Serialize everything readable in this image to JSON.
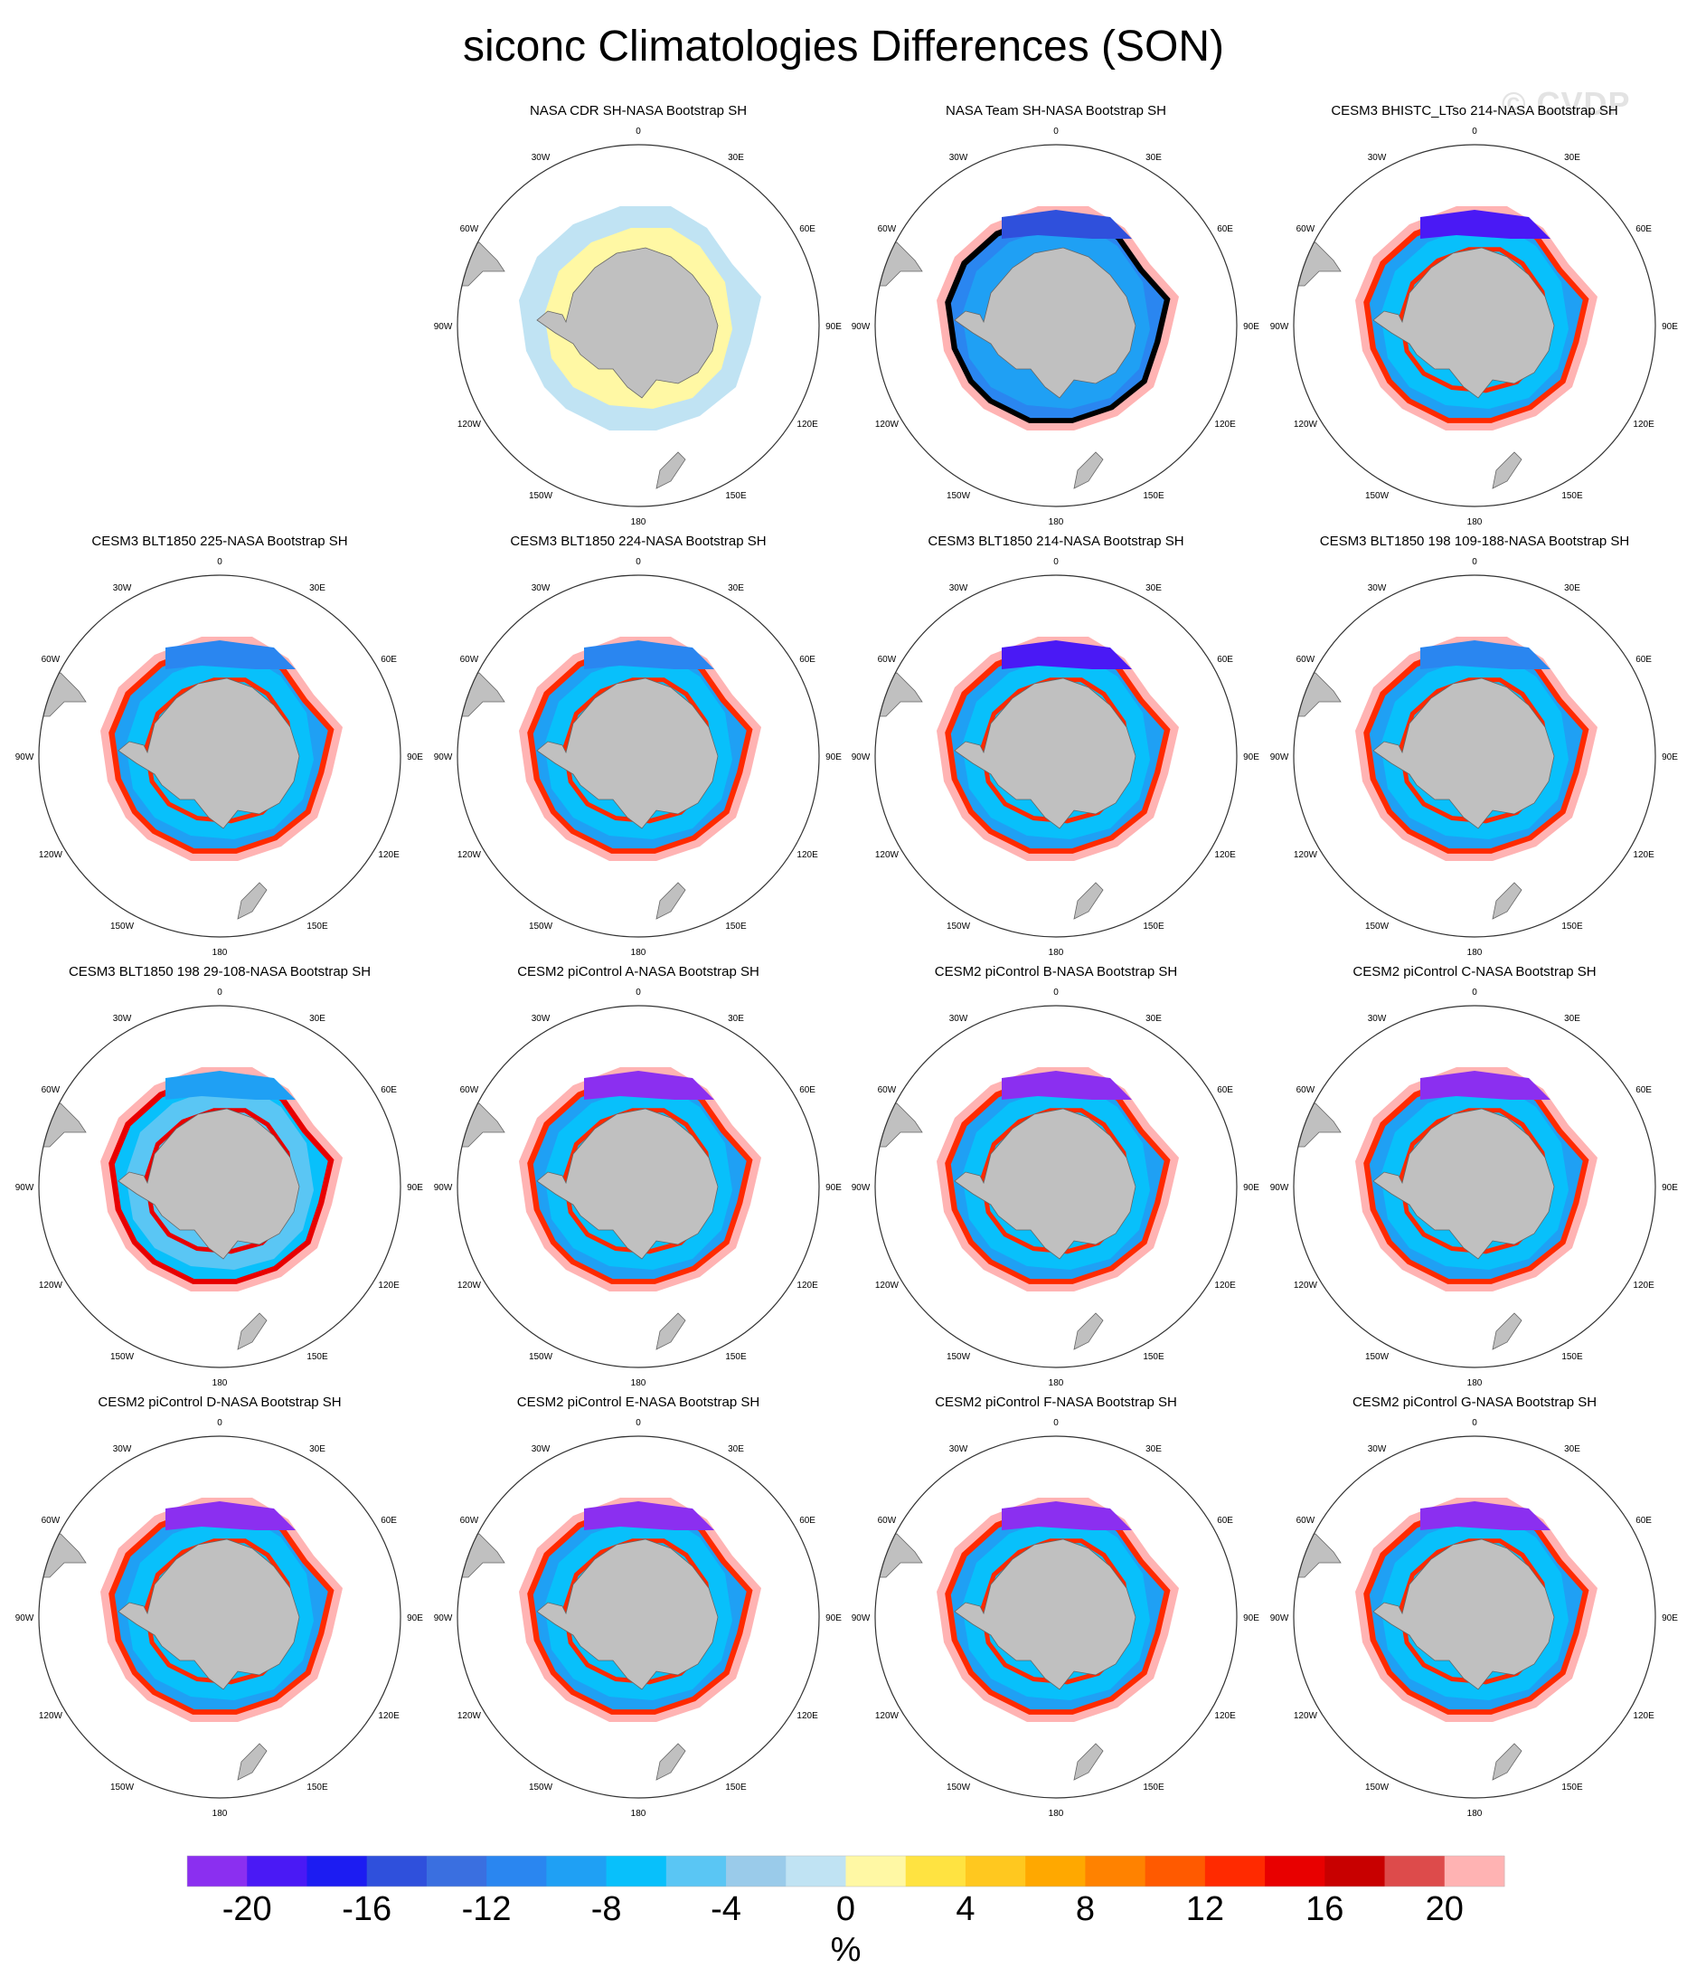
{
  "title": "siconc Climatologies Differences (SON)",
  "watermark": "© CVDP",
  "colorbar": {
    "unit": "%",
    "tick_labels": [
      "-20",
      "-16",
      "-12",
      "-8",
      "-4",
      "0",
      "4",
      "8",
      "12",
      "16",
      "20"
    ],
    "colors": [
      "#8b2ff0",
      "#4a19f5",
      "#1c1cf2",
      "#2f50dc",
      "#3a6fe0",
      "#2a86f0",
      "#1fa0f4",
      "#08c0fb",
      "#5ac6f4",
      "#9acbea",
      "#c0e3f3",
      "#fff8a4",
      "#ffe341",
      "#ffc81f",
      "#ffa800",
      "#ff8200",
      "#ff5a00",
      "#ff2a00",
      "#e80000",
      "#c80000",
      "#dd4b4b",
      "#ffb3b3"
    ]
  },
  "land_color": "#c0c0c0",
  "panel_titles": [
    "NASA CDR SH-NASA Bootstrap SH",
    "NASA Team SH-NASA Bootstrap SH",
    "CESM3 BHISTC_LTso 214-NASA Bootstrap SH",
    "CESM3 BLT1850 225-NASA Bootstrap SH",
    "CESM3 BLT1850 224-NASA Bootstrap SH",
    "CESM3 BLT1850 214-NASA Bootstrap SH",
    "CESM3 BLT1850 198 109-188-NASA Bootstrap SH",
    "CESM3 BLT1850 198 29-108-NASA Bootstrap SH",
    "CESM2 piControl A-NASA Bootstrap SH",
    "CESM2 piControl B-NASA Bootstrap SH",
    "CESM2 piControl C-NASA Bootstrap SH",
    "CESM2 piControl D-NASA Bootstrap SH",
    "CESM2 piControl E-NASA Bootstrap SH",
    "CESM2 piControl F-NASA Bootstrap SH",
    "CESM2 piControl G-NASA Bootstrap SH"
  ],
  "lon_labels": [
    {
      "text": "0",
      "angle": 0
    },
    {
      "text": "30E",
      "angle": 30
    },
    {
      "text": "60E",
      "angle": 60
    },
    {
      "text": "90E",
      "angle": 90
    },
    {
      "text": "120E",
      "angle": 120
    },
    {
      "text": "150E",
      "angle": 150
    },
    {
      "text": "180",
      "angle": 180
    },
    {
      "text": "150W",
      "angle": 210
    },
    {
      "text": "120W",
      "angle": 240
    },
    {
      "text": "90W",
      "angle": 270
    },
    {
      "text": "60W",
      "angle": 300
    },
    {
      "text": "30W",
      "angle": 330
    }
  ],
  "chart_data": {
    "type": "heatmap",
    "projection": "south polar stereographic",
    "field": "siconc",
    "season": "SON",
    "colorbar_range": [
      -22,
      22
    ],
    "contour_interval": 2,
    "panels": [
      {
        "title": "NASA CDR SH-NASA Bootstrap SH",
        "pattern": "near-zero differences: pale yellow (0 to 2) near coast, pale blue (-2 to 0) in outer ice zone"
      },
      {
        "title": "NASA Team SH-NASA Bootstrap SH",
        "pattern": "negative differences (about -4 to -14) throughout ice pack"
      },
      {
        "title": "CESM3 BHISTC_LTso 214-NASA Bootstrap SH",
        "pattern": "strong negative Weddell Sea, positive (>20) ice edge band"
      },
      {
        "title": "CESM3 BLT1850 225-NASA Bootstrap SH",
        "pattern": "mixed negative interior, positive ice edge band"
      },
      {
        "title": "CESM3 BLT1850 224-NASA Bootstrap SH",
        "pattern": "mixed negative interior, positive ice edge band"
      },
      {
        "title": "CESM3 BLT1850 214-NASA Bootstrap SH",
        "pattern": "strong negative Weddell Sea, positive ice edge band"
      },
      {
        "title": "CESM3 BLT1850 198 109-188-NASA Bootstrap SH",
        "pattern": "mixed negative interior, positive ice edge band"
      },
      {
        "title": "CESM3 BLT1850 198 29-108-NASA Bootstrap SH",
        "pattern": "weak negative interior, positive ice edge band"
      },
      {
        "title": "CESM2 piControl A-NASA Bootstrap SH",
        "pattern": "strong negative Weddell Sea (< -20), positive ice edge band"
      },
      {
        "title": "CESM2 piControl B-NASA Bootstrap SH",
        "pattern": "strong negative Weddell Sea (< -20), positive ice edge band"
      },
      {
        "title": "CESM2 piControl C-NASA Bootstrap SH",
        "pattern": "strong negative Weddell Sea (< -20), positive ice edge band"
      },
      {
        "title": "CESM2 piControl D-NASA Bootstrap SH",
        "pattern": "strong negative Weddell Sea (< -20), positive ice edge band"
      },
      {
        "title": "CESM2 piControl E-NASA Bootstrap SH",
        "pattern": "strong negative Weddell Sea (< -20), positive ice edge band"
      },
      {
        "title": "CESM2 piControl F-NASA Bootstrap SH",
        "pattern": "strong negative Weddell Sea (< -20), positive ice edge band"
      },
      {
        "title": "CESM2 piControl G-NASA Bootstrap SH",
        "pattern": "strong negative Weddell Sea (< -20), positive ice edge band"
      }
    ]
  }
}
